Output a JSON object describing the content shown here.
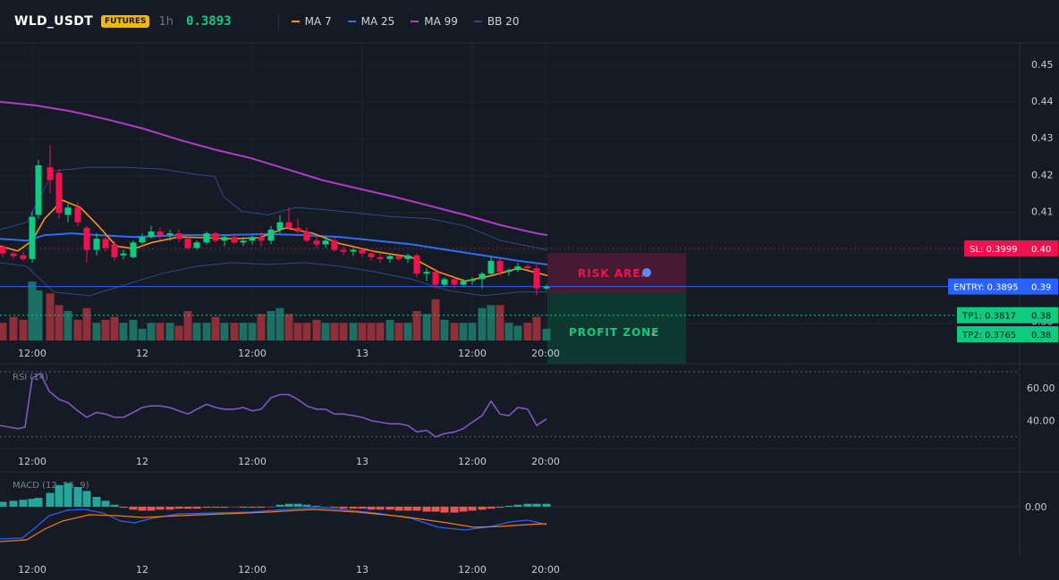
{
  "header": {
    "symbol": "WLD_USDT",
    "badge": "FUTURES",
    "interval": "1h",
    "price": "0.3893"
  },
  "legend": [
    {
      "label": "MA 7",
      "color": "#f7931a"
    },
    {
      "label": "MA 25",
      "color": "#2e6ff2"
    },
    {
      "label": "MA 99",
      "color": "#b03cc9"
    },
    {
      "label": "BB 20",
      "color": "#2b4a8b"
    }
  ],
  "price_axis": [
    "0.45",
    "0.44",
    "0.43",
    "0.42",
    "0.41",
    "0.40",
    "0.39",
    "0.38"
  ],
  "time_axis": [
    "12:00",
    "12",
    "12:00",
    "13",
    "12:00",
    "20:00"
  ],
  "levels": {
    "sl": {
      "label": "SL: 0.3999",
      "price": "0.40",
      "value": 0.3999,
      "color": "#f0124f"
    },
    "entry": {
      "label": "ENTRY: 0.3895",
      "price": "0.39",
      "value": 0.3895,
      "color": "#2962ff"
    },
    "tp1": {
      "label": "TP1: 0.3817",
      "price": "0.38",
      "value": 0.3817,
      "color": "#0ecb81"
    },
    "tp2": {
      "label": "TP2: 0.3765",
      "price": "0.38",
      "value": 0.3765,
      "color": "#0ecb81"
    }
  },
  "zones": {
    "risk": "RISK AREA",
    "profit": "PROFIT ZONE"
  },
  "rsi": {
    "label": "RSI (14)",
    "axis": [
      "60.00",
      "40.00"
    ],
    "upper": 70,
    "lower": 30,
    "color": "#7e57c2"
  },
  "macd": {
    "label": "MACD (12, 26, 9)",
    "axis": [
      "0.00"
    ]
  },
  "colors": {
    "up": "#0ecb81",
    "down": "#f0124f",
    "vol_up": "#1d6e63",
    "vol_down": "#8f2f3a",
    "hist_up": "#26a69a",
    "hist_down": "#ef5350",
    "macd_line": "#2962ff",
    "signal_line": "#f57c00"
  }
}
